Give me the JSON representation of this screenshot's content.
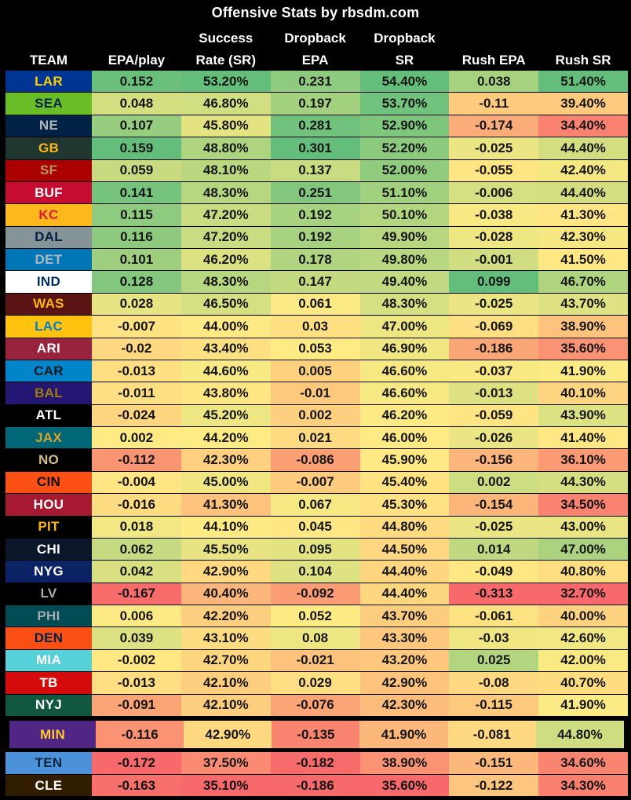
{
  "heatmap": {
    "low": "#F8696B",
    "mid": "#FFEB84",
    "high": "#63BE7B"
  },
  "chart_data": {
    "type": "heatmap-table",
    "title": "Offensive Stats by rbsdm.com",
    "header": {
      "line1": [
        "",
        "",
        "Success",
        "Dropback",
        "Dropback",
        "",
        ""
      ],
      "line2": [
        "TEAM",
        "EPA/play",
        "Rate (SR)",
        "EPA",
        "SR",
        "Rush EPA",
        "Rush SR"
      ]
    },
    "value_columns": [
      "EPA/play",
      "Success Rate (SR)",
      "Dropback EPA",
      "Dropback SR",
      "Rush EPA",
      "Rush SR"
    ],
    "color_scale_note": "per-column red-yellow-green scale, min to median to max",
    "highlighted_team": "MIN",
    "rows": [
      {
        "team": "LAR",
        "bg": "#003594",
        "fg": "#FFD100",
        "values": [
          "0.152",
          "53.20%",
          "0.231",
          "54.40%",
          "0.038",
          "51.40%"
        ]
      },
      {
        "team": "SEA",
        "bg": "#69BE28",
        "fg": "#002244",
        "values": [
          "0.048",
          "46.80%",
          "0.197",
          "53.70%",
          "-0.11",
          "39.40%"
        ]
      },
      {
        "team": "NE",
        "bg": "#002244",
        "fg": "#B0B7BC",
        "values": [
          "0.107",
          "45.80%",
          "0.281",
          "52.90%",
          "-0.174",
          "34.40%"
        ]
      },
      {
        "team": "GB",
        "bg": "#203731",
        "fg": "#FFB612",
        "values": [
          "0.159",
          "48.80%",
          "0.301",
          "52.20%",
          "-0.025",
          "44.40%"
        ]
      },
      {
        "team": "SF",
        "bg": "#AA0000",
        "fg": "#B3995D",
        "values": [
          "0.059",
          "48.10%",
          "0.137",
          "52.00%",
          "-0.055",
          "42.40%"
        ]
      },
      {
        "team": "BUF",
        "bg": "#C60C30",
        "fg": "#FFFFFF",
        "values": [
          "0.141",
          "48.30%",
          "0.251",
          "51.10%",
          "-0.006",
          "44.40%"
        ]
      },
      {
        "team": "KC",
        "bg": "#FFB81C",
        "fg": "#E31837",
        "values": [
          "0.115",
          "47.20%",
          "0.192",
          "50.10%",
          "-0.038",
          "41.30%"
        ]
      },
      {
        "team": "DAL",
        "bg": "#869397",
        "fg": "#041E42",
        "values": [
          "0.116",
          "47.20%",
          "0.192",
          "49.90%",
          "-0.028",
          "42.30%"
        ]
      },
      {
        "team": "DET",
        "bg": "#0076B6",
        "fg": "#B0B7BC",
        "values": [
          "0.101",
          "46.20%",
          "0.178",
          "49.80%",
          "-0.001",
          "41.50%"
        ]
      },
      {
        "team": "IND",
        "bg": "#FFFFFF",
        "fg": "#002C5F",
        "values": [
          "0.128",
          "48.30%",
          "0.147",
          "49.40%",
          "0.099",
          "46.70%"
        ]
      },
      {
        "team": "WAS",
        "bg": "#5A1414",
        "fg": "#FFB612",
        "values": [
          "0.028",
          "46.50%",
          "0.061",
          "48.30%",
          "-0.025",
          "43.70%"
        ]
      },
      {
        "team": "LAC",
        "bg": "#FFC20E",
        "fg": "#0080C6",
        "values": [
          "-0.007",
          "44.00%",
          "0.03",
          "47.00%",
          "-0.069",
          "38.90%"
        ]
      },
      {
        "team": "ARI",
        "bg": "#97233F",
        "fg": "#FFFFFF",
        "values": [
          "-0.02",
          "43.40%",
          "0.053",
          "46.90%",
          "-0.186",
          "35.60%"
        ]
      },
      {
        "team": "CAR",
        "bg": "#0085CA",
        "fg": "#101820",
        "values": [
          "-0.013",
          "44.60%",
          "0.005",
          "46.60%",
          "-0.037",
          "41.90%"
        ]
      },
      {
        "team": "BAL",
        "bg": "#241773",
        "fg": "#9E7C0C",
        "values": [
          "-0.011",
          "43.80%",
          "-0.01",
          "46.60%",
          "-0.013",
          "40.10%"
        ]
      },
      {
        "team": "ATL",
        "bg": "#000000",
        "fg": "#FFFFFF",
        "values": [
          "-0.024",
          "45.20%",
          "0.002",
          "46.20%",
          "-0.059",
          "43.90%"
        ]
      },
      {
        "team": "JAX",
        "bg": "#006778",
        "fg": "#D7A22A",
        "values": [
          "0.002",
          "44.20%",
          "0.021",
          "46.00%",
          "-0.026",
          "41.40%"
        ]
      },
      {
        "team": "NO",
        "bg": "#000000",
        "fg": "#D3BC8D",
        "values": [
          "-0.112",
          "42.30%",
          "-0.086",
          "45.90%",
          "-0.156",
          "36.10%"
        ]
      },
      {
        "team": "CIN",
        "bg": "#FB4F14",
        "fg": "#0B0B0B",
        "values": [
          "-0.004",
          "45.00%",
          "-0.007",
          "45.40%",
          "0.002",
          "44.30%"
        ]
      },
      {
        "team": "HOU",
        "bg": "#A71930",
        "fg": "#FFFFFF",
        "values": [
          "-0.016",
          "41.30%",
          "0.067",
          "45.30%",
          "-0.154",
          "34.50%"
        ]
      },
      {
        "team": "PIT",
        "bg": "#000000",
        "fg": "#FFB612",
        "values": [
          "0.018",
          "44.10%",
          "0.045",
          "44.80%",
          "-0.025",
          "43.00%"
        ]
      },
      {
        "team": "CHI",
        "bg": "#0B162A",
        "fg": "#FFFFFF",
        "values": [
          "0.062",
          "45.50%",
          "0.095",
          "44.50%",
          "0.014",
          "47.00%"
        ]
      },
      {
        "team": "NYG",
        "bg": "#0B2265",
        "fg": "#FFFFFF",
        "values": [
          "0.042",
          "42.90%",
          "0.104",
          "44.40%",
          "-0.049",
          "40.80%"
        ]
      },
      {
        "team": "LV",
        "bg": "#000000",
        "fg": "#A5ACAF",
        "values": [
          "-0.167",
          "40.40%",
          "-0.092",
          "44.40%",
          "-0.313",
          "32.70%"
        ]
      },
      {
        "team": "PHI",
        "bg": "#004C54",
        "fg": "#A5ACAF",
        "values": [
          "0.006",
          "42.20%",
          "0.052",
          "43.70%",
          "-0.061",
          "40.00%"
        ]
      },
      {
        "team": "DEN",
        "bg": "#FB4F14",
        "fg": "#002244",
        "values": [
          "0.039",
          "43.10%",
          "0.08",
          "43.30%",
          "-0.03",
          "42.60%"
        ]
      },
      {
        "team": "MIA",
        "bg": "#57D1D9",
        "fg": "#FFFFFF",
        "values": [
          "-0.002",
          "42.70%",
          "-0.021",
          "43.20%",
          "0.025",
          "42.00%"
        ]
      },
      {
        "team": "TB",
        "bg": "#D50A0A",
        "fg": "#FFFFFF",
        "values": [
          "-0.013",
          "42.10%",
          "0.029",
          "42.90%",
          "-0.08",
          "40.70%"
        ]
      },
      {
        "team": "NYJ",
        "bg": "#125740",
        "fg": "#FFFFFF",
        "values": [
          "-0.091",
          "42.10%",
          "-0.076",
          "42.30%",
          "-0.115",
          "41.90%"
        ]
      },
      {
        "team": "MIN",
        "bg": "#4F2683",
        "fg": "#FFC62F",
        "values": [
          "-0.116",
          "42.90%",
          "-0.135",
          "41.90%",
          "-0.081",
          "44.80%"
        ]
      },
      {
        "team": "TEN",
        "bg": "#4B92DB",
        "fg": "#0C2340",
        "values": [
          "-0.172",
          "37.50%",
          "-0.182",
          "38.90%",
          "-0.151",
          "34.60%"
        ]
      },
      {
        "team": "CLE",
        "bg": "#311D00",
        "fg": "#FFFFFF",
        "values": [
          "-0.163",
          "35.10%",
          "-0.186",
          "35.60%",
          "-0.122",
          "34.30%"
        ]
      }
    ]
  }
}
